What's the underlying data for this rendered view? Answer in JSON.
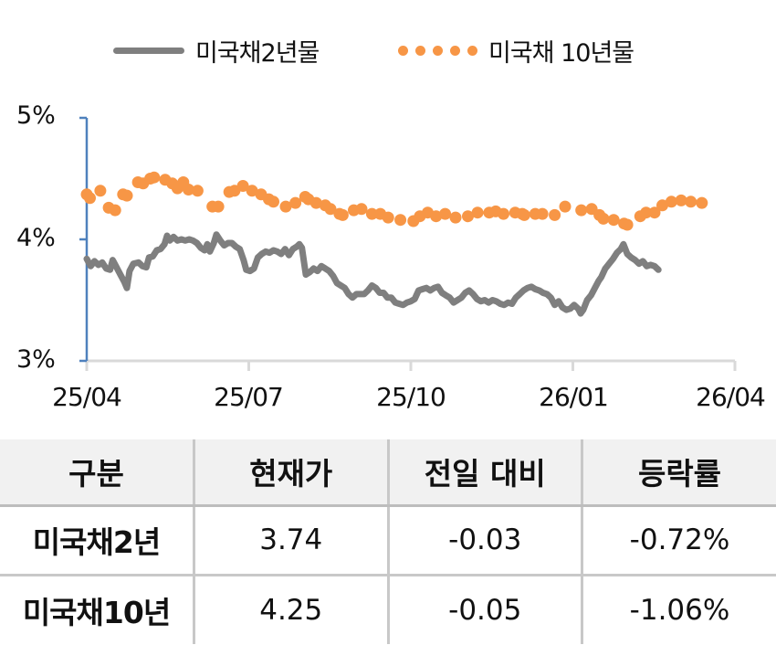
{
  "chart_data": {
    "type": "line",
    "title": "",
    "xlabel": "",
    "ylabel": "",
    "ylim": [
      3,
      5
    ],
    "yticks": [
      "5%",
      "4%",
      "3%"
    ],
    "ytick_values": [
      5,
      4,
      3
    ],
    "xticks": [
      "25/04",
      "25/07",
      "25/10",
      "26/01",
      "26/04"
    ],
    "grid": false,
    "legend_position": "top",
    "colors": {
      "us2y": "#7f7f7f",
      "us10y": "#f79646",
      "yaxis": "#4f81bd",
      "xaxis": "#d9d9d9"
    },
    "series": [
      {
        "name": "미국채2년물",
        "style": "line",
        "color": "#7f7f7f",
        "points": [
          [
            0.0,
            3.84
          ],
          [
            0.006,
            3.78
          ],
          [
            0.012,
            3.82
          ],
          [
            0.018,
            3.79
          ],
          [
            0.024,
            3.81
          ],
          [
            0.03,
            3.76
          ],
          [
            0.036,
            3.75
          ],
          [
            0.04,
            3.83
          ],
          [
            0.046,
            3.77
          ],
          [
            0.052,
            3.71
          ],
          [
            0.058,
            3.65
          ],
          [
            0.062,
            3.6
          ],
          [
            0.066,
            3.74
          ],
          [
            0.072,
            3.8
          ],
          [
            0.08,
            3.81
          ],
          [
            0.086,
            3.78
          ],
          [
            0.092,
            3.77
          ],
          [
            0.096,
            3.85
          ],
          [
            0.102,
            3.86
          ],
          [
            0.108,
            3.91
          ],
          [
            0.114,
            3.92
          ],
          [
            0.12,
            3.96
          ],
          [
            0.124,
            4.03
          ],
          [
            0.128,
            3.99
          ],
          [
            0.134,
            4.02
          ],
          [
            0.14,
            3.99
          ],
          [
            0.146,
            4.0
          ],
          [
            0.152,
            3.99
          ],
          [
            0.158,
            4.0
          ],
          [
            0.164,
            3.99
          ],
          [
            0.17,
            3.97
          ],
          [
            0.176,
            3.93
          ],
          [
            0.182,
            3.91
          ],
          [
            0.186,
            3.96
          ],
          [
            0.19,
            3.9
          ],
          [
            0.196,
            3.97
          ],
          [
            0.2,
            4.04
          ],
          [
            0.206,
            3.99
          ],
          [
            0.212,
            3.95
          ],
          [
            0.218,
            3.97
          ],
          [
            0.224,
            3.97
          ],
          [
            0.23,
            3.94
          ],
          [
            0.236,
            3.92
          ],
          [
            0.242,
            3.83
          ],
          [
            0.246,
            3.75
          ],
          [
            0.252,
            3.74
          ],
          [
            0.258,
            3.76
          ],
          [
            0.264,
            3.85
          ],
          [
            0.27,
            3.88
          ],
          [
            0.276,
            3.9
          ],
          [
            0.282,
            3.89
          ],
          [
            0.288,
            3.91
          ],
          [
            0.294,
            3.9
          ],
          [
            0.3,
            3.88
          ],
          [
            0.306,
            3.92
          ],
          [
            0.312,
            3.87
          ],
          [
            0.318,
            3.92
          ],
          [
            0.324,
            3.94
          ],
          [
            0.328,
            3.96
          ],
          [
            0.332,
            3.93
          ],
          [
            0.338,
            3.71
          ],
          [
            0.344,
            3.73
          ],
          [
            0.35,
            3.76
          ],
          [
            0.356,
            3.74
          ],
          [
            0.362,
            3.78
          ],
          [
            0.368,
            3.76
          ],
          [
            0.374,
            3.74
          ],
          [
            0.38,
            3.7
          ],
          [
            0.386,
            3.64
          ],
          [
            0.392,
            3.62
          ],
          [
            0.398,
            3.6
          ],
          [
            0.404,
            3.55
          ],
          [
            0.41,
            3.52
          ],
          [
            0.416,
            3.55
          ],
          [
            0.422,
            3.55
          ],
          [
            0.428,
            3.55
          ],
          [
            0.434,
            3.58
          ],
          [
            0.44,
            3.62
          ],
          [
            0.446,
            3.6
          ],
          [
            0.452,
            3.56
          ],
          [
            0.458,
            3.56
          ],
          [
            0.464,
            3.52
          ],
          [
            0.47,
            3.52
          ],
          [
            0.476,
            3.48
          ],
          [
            0.482,
            3.47
          ],
          [
            0.488,
            3.46
          ],
          [
            0.494,
            3.48
          ],
          [
            0.5,
            3.49
          ],
          [
            0.506,
            3.51
          ],
          [
            0.512,
            3.58
          ],
          [
            0.518,
            3.59
          ],
          [
            0.524,
            3.6
          ],
          [
            0.53,
            3.58
          ],
          [
            0.536,
            3.6
          ],
          [
            0.542,
            3.61
          ],
          [
            0.548,
            3.56
          ],
          [
            0.554,
            3.54
          ],
          [
            0.56,
            3.52
          ],
          [
            0.566,
            3.48
          ],
          [
            0.572,
            3.5
          ],
          [
            0.578,
            3.52
          ],
          [
            0.584,
            3.56
          ],
          [
            0.59,
            3.58
          ],
          [
            0.596,
            3.55
          ],
          [
            0.602,
            3.51
          ],
          [
            0.608,
            3.49
          ],
          [
            0.614,
            3.5
          ],
          [
            0.62,
            3.48
          ],
          [
            0.626,
            3.5
          ],
          [
            0.632,
            3.49
          ],
          [
            0.638,
            3.47
          ],
          [
            0.644,
            3.46
          ],
          [
            0.65,
            3.48
          ],
          [
            0.656,
            3.47
          ],
          [
            0.662,
            3.52
          ],
          [
            0.668,
            3.55
          ],
          [
            0.674,
            3.58
          ],
          [
            0.68,
            3.6
          ],
          [
            0.686,
            3.61
          ],
          [
            0.692,
            3.59
          ],
          [
            0.698,
            3.58
          ],
          [
            0.704,
            3.56
          ],
          [
            0.71,
            3.55
          ],
          [
            0.716,
            3.52
          ],
          [
            0.722,
            3.46
          ],
          [
            0.728,
            3.49
          ],
          [
            0.734,
            3.44
          ],
          [
            0.74,
            3.42
          ],
          [
            0.746,
            3.43
          ],
          [
            0.752,
            3.46
          ],
          [
            0.758,
            3.43
          ],
          [
            0.762,
            3.39
          ],
          [
            0.766,
            3.42
          ],
          [
            0.772,
            3.5
          ],
          [
            0.778,
            3.54
          ],
          [
            0.784,
            3.6
          ],
          [
            0.79,
            3.66
          ],
          [
            0.794,
            3.69
          ],
          [
            0.8,
            3.76
          ],
          [
            0.806,
            3.8
          ],
          [
            0.812,
            3.84
          ],
          [
            0.818,
            3.89
          ],
          [
            0.824,
            3.92
          ],
          [
            0.828,
            3.96
          ],
          [
            0.834,
            3.88
          ],
          [
            0.84,
            3.85
          ],
          [
            0.846,
            3.83
          ],
          [
            0.852,
            3.8
          ],
          [
            0.858,
            3.82
          ],
          [
            0.864,
            3.78
          ],
          [
            0.87,
            3.79
          ],
          [
            0.876,
            3.78
          ],
          [
            0.882,
            3.75
          ]
        ]
      },
      {
        "name": "미국채 10년물",
        "style": "dots",
        "color": "#f79646",
        "points": [
          [
            0.0,
            4.37
          ],
          [
            0.005,
            4.34
          ],
          [
            0.021,
            4.4
          ],
          [
            0.034,
            4.26
          ],
          [
            0.044,
            4.24
          ],
          [
            0.056,
            4.37
          ],
          [
            0.062,
            4.36
          ],
          [
            0.079,
            4.47
          ],
          [
            0.087,
            4.46
          ],
          [
            0.098,
            4.5
          ],
          [
            0.104,
            4.51
          ],
          [
            0.121,
            4.49
          ],
          [
            0.132,
            4.46
          ],
          [
            0.14,
            4.42
          ],
          [
            0.149,
            4.47
          ],
          [
            0.157,
            4.41
          ],
          [
            0.171,
            4.4
          ],
          [
            0.194,
            4.27
          ],
          [
            0.203,
            4.27
          ],
          [
            0.22,
            4.39
          ],
          [
            0.228,
            4.4
          ],
          [
            0.241,
            4.44
          ],
          [
            0.255,
            4.4
          ],
          [
            0.269,
            4.37
          ],
          [
            0.281,
            4.33
          ],
          [
            0.288,
            4.31
          ],
          [
            0.307,
            4.27
          ],
          [
            0.322,
            4.3
          ],
          [
            0.337,
            4.35
          ],
          [
            0.342,
            4.33
          ],
          [
            0.354,
            4.3
          ],
          [
            0.368,
            4.28
          ],
          [
            0.376,
            4.25
          ],
          [
            0.39,
            4.21
          ],
          [
            0.395,
            4.2
          ],
          [
            0.412,
            4.24
          ],
          [
            0.424,
            4.25
          ],
          [
            0.44,
            4.21
          ],
          [
            0.453,
            4.21
          ],
          [
            0.465,
            4.18
          ],
          [
            0.484,
            4.16
          ],
          [
            0.504,
            4.15
          ],
          [
            0.514,
            4.19
          ],
          [
            0.526,
            4.22
          ],
          [
            0.539,
            4.19
          ],
          [
            0.553,
            4.21
          ],
          [
            0.569,
            4.18
          ],
          [
            0.588,
            4.19
          ],
          [
            0.603,
            4.22
          ],
          [
            0.621,
            4.22
          ],
          [
            0.631,
            4.23
          ],
          [
            0.643,
            4.21
          ],
          [
            0.661,
            4.22
          ],
          [
            0.672,
            4.21
          ],
          [
            0.675,
            4.2
          ],
          [
            0.692,
            4.21
          ],
          [
            0.703,
            4.21
          ],
          [
            0.722,
            4.2
          ],
          [
            0.738,
            4.27
          ],
          [
            0.763,
            4.24
          ],
          [
            0.779,
            4.25
          ],
          [
            0.791,
            4.2
          ],
          [
            0.797,
            4.17
          ],
          [
            0.813,
            4.16
          ],
          [
            0.829,
            4.13
          ],
          [
            0.834,
            4.12
          ],
          [
            0.854,
            4.19
          ],
          [
            0.863,
            4.22
          ],
          [
            0.876,
            4.22
          ],
          [
            0.888,
            4.28
          ],
          [
            0.902,
            4.31
          ],
          [
            0.917,
            4.32
          ],
          [
            0.932,
            4.31
          ],
          [
            0.949,
            4.3
          ]
        ]
      }
    ]
  },
  "legend": {
    "items": [
      {
        "label": "미국채2년물",
        "style": "line"
      },
      {
        "label": "미국채 10년물",
        "style": "dots"
      }
    ]
  },
  "table": {
    "headers": [
      "구분",
      "현재가",
      "전일 대비",
      "등락률"
    ],
    "rows": [
      {
        "name": "미국채2년",
        "price": "3.74",
        "change": "-0.03",
        "rate": "-0.72%"
      },
      {
        "name": "미국채10년",
        "price": "4.25",
        "change": "-0.05",
        "rate": "-1.06%"
      }
    ]
  }
}
